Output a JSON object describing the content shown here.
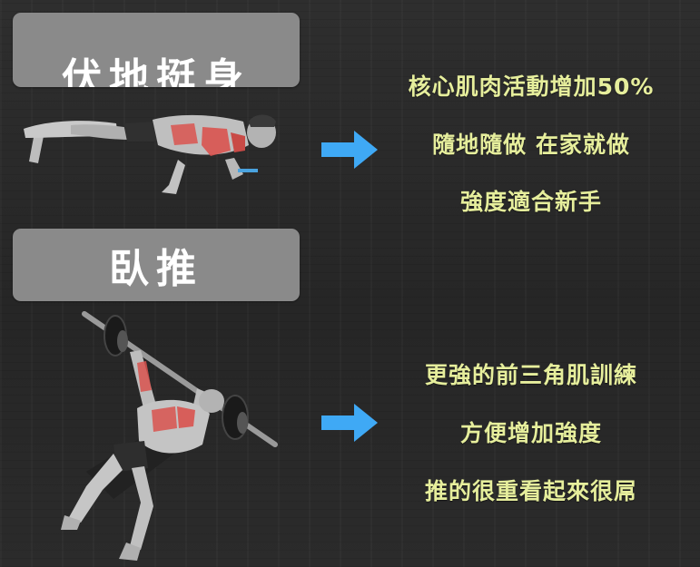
{
  "sections": [
    {
      "title": "伏地挺身",
      "benefits": [
        "核心肌肉活動增加50%",
        "隨地隨做  在家就做",
        "強度適合新手"
      ]
    },
    {
      "title": "臥推",
      "benefits": [
        "更強的前三角肌訓練",
        "方便增加強度",
        "推的很重看起來很屌"
      ]
    }
  ],
  "colors": {
    "background": "#2a2a2a",
    "title_box": "#8a8a8a",
    "benefit_text": "#e6ee9c",
    "arrow": "#3fa9f5",
    "muscle_highlight": "#d9534f"
  },
  "icons": [
    "pushup-illustration",
    "bench-press-illustration",
    "right-arrow-icon"
  ]
}
